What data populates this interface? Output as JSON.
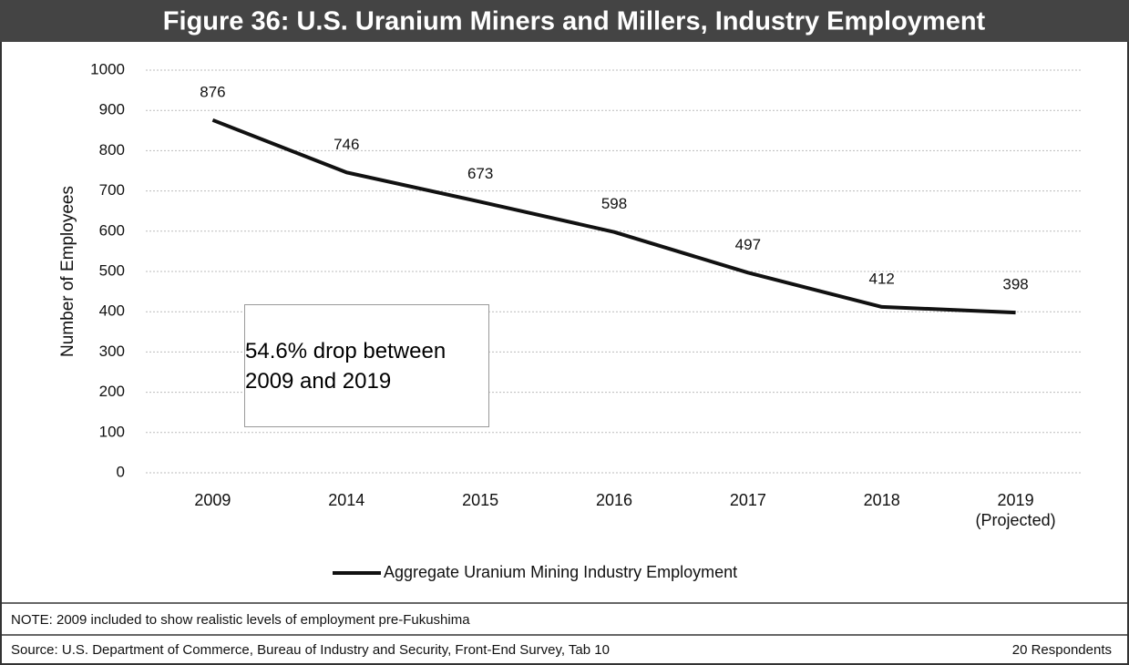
{
  "chart_data": {
    "type": "line",
    "title": "Figure 36: U.S. Uranium Miners and Millers, Industry Employment",
    "y_label": "Number of Employees",
    "categories": [
      "2009",
      "2014",
      "2015",
      "2016",
      "2017",
      "2018",
      "2019\n(Projected)"
    ],
    "series": [
      {
        "name": "Aggregate Uranium Mining Industry Employment",
        "color": "#111111",
        "values": [
          876,
          746,
          673,
          598,
          497,
          412,
          398
        ]
      }
    ],
    "ylim": [
      0,
      1000
    ],
    "yticks": [
      0,
      100,
      200,
      300,
      400,
      500,
      600,
      700,
      800,
      900,
      1000
    ],
    "grid": true,
    "annotation": "54.6% drop\nbetween 2009\nand 2019"
  },
  "footer": {
    "note": "NOTE:  2009 included to show realistic levels of employment pre-Fukushima",
    "source": "Source: U.S. Department of Commerce, Bureau of Industry and Security, Front-End Survey, Tab 10",
    "respondents": "20 Respondents"
  }
}
